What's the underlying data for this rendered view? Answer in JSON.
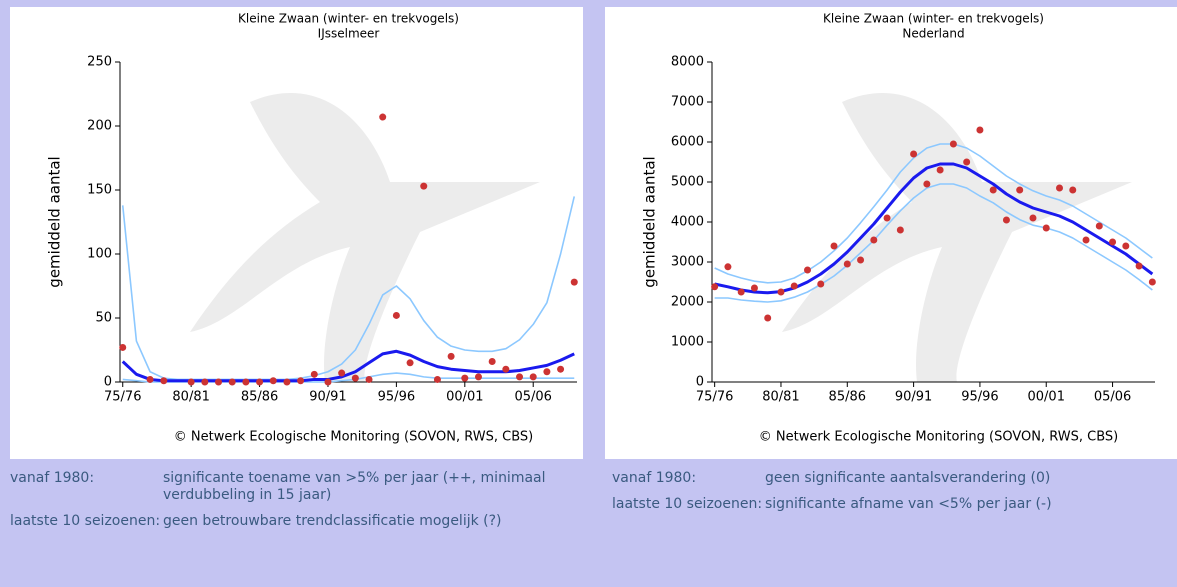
{
  "chart_data": [
    {
      "type": "line",
      "title": "Kleine Zwaan (winter- en trekvogels)",
      "subtitle": "IJsselmeer",
      "y_label": "gemiddeld aantal",
      "source": "© Netwerk Ecologische Monitoring (SOVON, RWS, CBS)",
      "xlim": [
        1974.8,
        2008.2
      ],
      "ylim": [
        0,
        250
      ],
      "yticks": [
        0,
        50,
        100,
        150,
        200,
        250
      ],
      "xticks": [
        {
          "value": 1975,
          "label": "75/76"
        },
        {
          "value": 1980,
          "label": "80/81"
        },
        {
          "value": 1985,
          "label": "85/86"
        },
        {
          "value": 1990,
          "label": "90/91"
        },
        {
          "value": 1995,
          "label": "95/96"
        },
        {
          "value": 2000,
          "label": "00/01"
        },
        {
          "value": 2005,
          "label": "05/06"
        }
      ],
      "x": [
        1975,
        1976,
        1977,
        1978,
        1979,
        1980,
        1981,
        1982,
        1983,
        1984,
        1985,
        1986,
        1987,
        1988,
        1989,
        1990,
        1991,
        1992,
        1993,
        1994,
        1995,
        1996,
        1997,
        1998,
        1999,
        2000,
        2001,
        2002,
        2003,
        2004,
        2005,
        2006,
        2007,
        2008
      ],
      "series": [
        {
          "mode": "line",
          "color": "#8cc8ff",
          "values": [
            138,
            32,
            8,
            3,
            2,
            2,
            2,
            2,
            2,
            2,
            2,
            2,
            2,
            3,
            5,
            8,
            14,
            25,
            45,
            68,
            75,
            65,
            48,
            35,
            28,
            25,
            24,
            24,
            26,
            33,
            45,
            62,
            100,
            145
          ]
        },
        {
          "mode": "line",
          "color": "#8cc8ff",
          "values": [
            2,
            1,
            0,
            0,
            0,
            0,
            0,
            0,
            0,
            0,
            0,
            0,
            0,
            0,
            0,
            0,
            1,
            2,
            4,
            6,
            7,
            6,
            4,
            3,
            3,
            3,
            3,
            3,
            3,
            3,
            3,
            3,
            3,
            3
          ]
        },
        {
          "mode": "line",
          "color": "#1a1aee",
          "values": [
            16,
            6,
            2,
            1,
            1,
            1,
            1,
            1,
            1,
            1,
            1,
            1,
            1,
            1,
            2,
            2,
            4,
            8,
            15,
            22,
            24,
            21,
            16,
            12,
            10,
            9,
            8,
            8,
            8,
            9,
            11,
            13,
            17,
            22
          ]
        },
        {
          "mode": "markers",
          "color": "#cc3333",
          "values": [
            27,
            null,
            2,
            1,
            null,
            0,
            0,
            0,
            0,
            0,
            0,
            1,
            0,
            1,
            6,
            0,
            7,
            3,
            2,
            207,
            52,
            15,
            153,
            2,
            20,
            3,
            4,
            16,
            10,
            4,
            4,
            8,
            10,
            78
          ]
        }
      ]
    },
    {
      "type": "line",
      "title": "Kleine Zwaan (winter- en trekvogels)",
      "subtitle": "Nederland",
      "y_label": "gemiddeld aantal",
      "source": "© Netwerk Ecologische Monitoring (SOVON, RWS, CBS)",
      "xlim": [
        1974.8,
        2008.2
      ],
      "ylim": [
        0,
        8000
      ],
      "yticks": [
        0,
        1000,
        2000,
        3000,
        4000,
        5000,
        6000,
        7000,
        8000
      ],
      "xticks": [
        {
          "value": 1975,
          "label": "75/76"
        },
        {
          "value": 1980,
          "label": "80/81"
        },
        {
          "value": 1985,
          "label": "85/86"
        },
        {
          "value": 1990,
          "label": "90/91"
        },
        {
          "value": 1995,
          "label": "95/96"
        },
        {
          "value": 2000,
          "label": "00/01"
        },
        {
          "value": 2005,
          "label": "05/06"
        }
      ],
      "x": [
        1975,
        1976,
        1977,
        1978,
        1979,
        1980,
        1981,
        1982,
        1983,
        1984,
        1985,
        1986,
        1987,
        1988,
        1989,
        1990,
        1991,
        1992,
        1993,
        1994,
        1995,
        1996,
        1997,
        1998,
        1999,
        2000,
        2001,
        2002,
        2003,
        2004,
        2005,
        2006,
        2007,
        2008
      ],
      "series": [
        {
          "mode": "line",
          "color": "#8cc8ff",
          "values": [
            2850,
            2700,
            2600,
            2520,
            2480,
            2500,
            2600,
            2780,
            3000,
            3280,
            3600,
            3980,
            4380,
            4800,
            5250,
            5600,
            5850,
            5950,
            5950,
            5850,
            5650,
            5400,
            5150,
            4950,
            4780,
            4650,
            4550,
            4400,
            4200,
            4000,
            3800,
            3600,
            3350,
            3100
          ]
        },
        {
          "mode": "line",
          "color": "#8cc8ff",
          "values": [
            2100,
            2100,
            2050,
            2020,
            2000,
            2030,
            2120,
            2250,
            2440,
            2650,
            2920,
            3230,
            3540,
            3920,
            4280,
            4600,
            4850,
            4950,
            4950,
            4850,
            4650,
            4480,
            4250,
            4060,
            3920,
            3850,
            3750,
            3600,
            3400,
            3200,
            3000,
            2800,
            2560,
            2300
          ]
        },
        {
          "mode": "line",
          "color": "#1a1aee",
          "values": [
            2450,
            2380,
            2300,
            2250,
            2230,
            2260,
            2350,
            2500,
            2700,
            2950,
            3250,
            3600,
            3950,
            4350,
            4750,
            5100,
            5350,
            5450,
            5450,
            5350,
            5150,
            4950,
            4700,
            4500,
            4350,
            4250,
            4150,
            4000,
            3800,
            3600,
            3400,
            3200,
            2950,
            2700
          ]
        },
        {
          "mode": "markers",
          "color": "#cc3333",
          "values": [
            2380,
            2880,
            2250,
            2350,
            1600,
            2250,
            2400,
            2800,
            2450,
            3400,
            2950,
            3050,
            3550,
            4100,
            3800,
            5700,
            4950,
            5300,
            5950,
            5500,
            6300,
            4800,
            4050,
            4800,
            4100,
            3850,
            4850,
            4800,
            3550,
            3900,
            3500,
            3400,
            2900,
            2500
          ]
        }
      ]
    }
  ],
  "notes": [
    {
      "rows": [
        {
          "label": "vanaf 1980:",
          "text": "significante toename van >5% per jaar (++, minimaal verdubbeling in 15 jaar)"
        },
        {
          "label": "laatste 10 seizoenen:",
          "text": "geen betrouwbare trendclassificatie mogelijk (?)"
        }
      ]
    },
    {
      "rows": [
        {
          "label": "vanaf 1980:",
          "text": "geen significante aantalsverandering (0)"
        },
        {
          "label": "laatste 10 seizoenen:",
          "text": "significante afname van <5% per jaar (-)"
        }
      ]
    }
  ]
}
